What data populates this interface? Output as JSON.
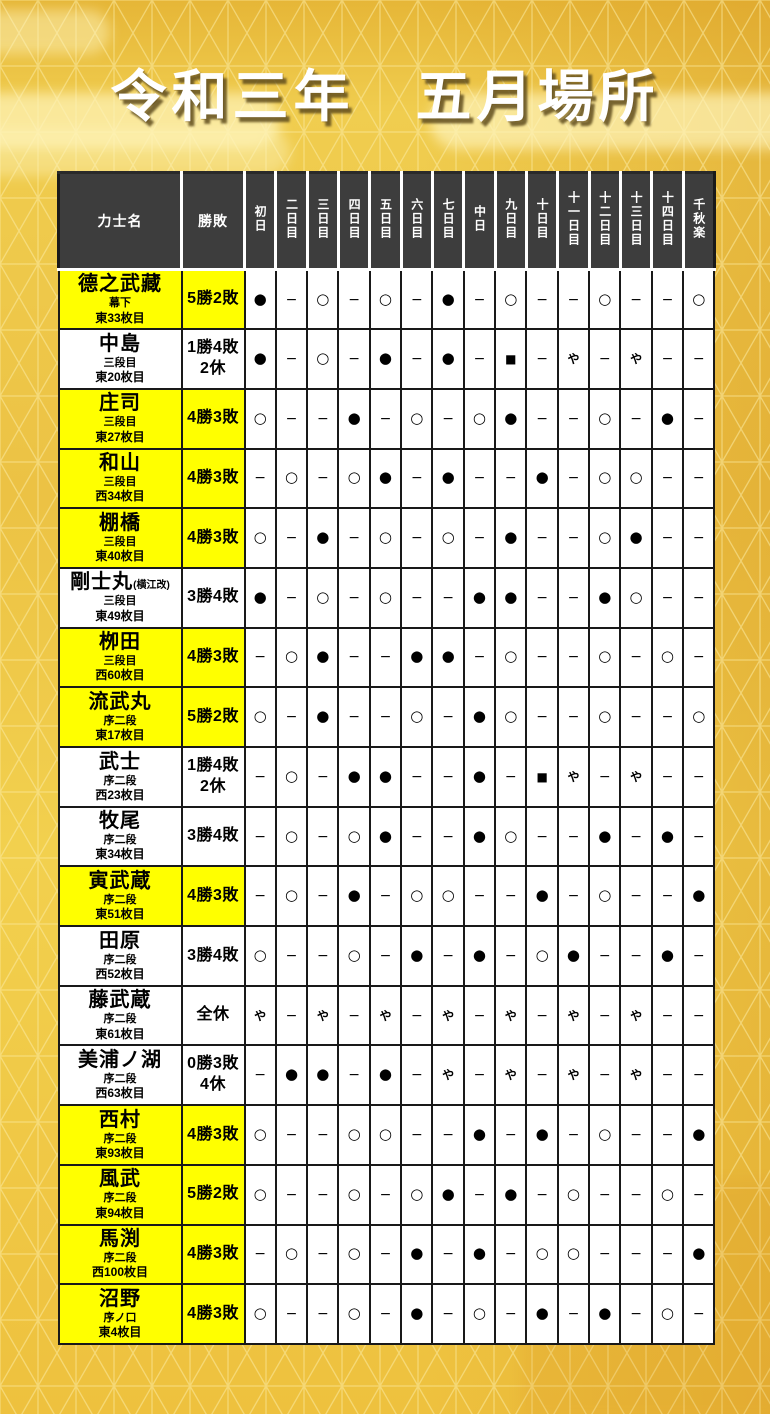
{
  "title": "令和三年　五月場所",
  "colors": {
    "highlight": "#ffff00",
    "header_bg": "#3d3d3d",
    "cell_border": "#191919",
    "background_gold": "#eec13c",
    "title_color": "#ffffff"
  },
  "symbols": {
    "win": "○",
    "loss": "●",
    "no_bout": "−",
    "rest": "や",
    "forfeit": "■"
  },
  "table": {
    "headers": {
      "name": "力士名",
      "record": "勝敗",
      "days": [
        "初日",
        "二日目",
        "三日目",
        "四日目",
        "五日目",
        "六日目",
        "七日目",
        "中日",
        "九日目",
        "十日目",
        "十一日目",
        "十二日目",
        "十三日目",
        "十四日目",
        "千秋楽"
      ]
    },
    "rows": [
      {
        "name": "德之武藏",
        "note": "",
        "rank": "幕下",
        "pos": "東33枚目",
        "record": "5勝2敗",
        "record2": "",
        "highlight": true,
        "results": [
          "●",
          "−",
          "○",
          "−",
          "○",
          "−",
          "●",
          "−",
          "○",
          "−",
          "−",
          "○",
          "−",
          "−",
          "○"
        ]
      },
      {
        "name": "中島",
        "note": "",
        "rank": "三段目",
        "pos": "東20枚目",
        "record": "1勝4敗",
        "record2": "2休",
        "highlight": false,
        "results": [
          "●",
          "−",
          "○",
          "−",
          "●",
          "−",
          "●",
          "−",
          "■",
          "−",
          "や",
          "−",
          "や",
          "−",
          "−"
        ]
      },
      {
        "name": "庄司",
        "note": "",
        "rank": "三段目",
        "pos": "東27枚目",
        "record": "4勝3敗",
        "record2": "",
        "highlight": true,
        "results": [
          "○",
          "−",
          "−",
          "●",
          "−",
          "○",
          "−",
          "○",
          "●",
          "−",
          "−",
          "○",
          "−",
          "●",
          "−"
        ]
      },
      {
        "name": "和山",
        "note": "",
        "rank": "三段目",
        "pos": "西34枚目",
        "record": "4勝3敗",
        "record2": "",
        "highlight": true,
        "results": [
          "−",
          "○",
          "−",
          "○",
          "●",
          "−",
          "●",
          "−",
          "−",
          "●",
          "−",
          "○",
          "○",
          "−",
          "−"
        ]
      },
      {
        "name": "棚橋",
        "note": "",
        "rank": "三段目",
        "pos": "東40枚目",
        "record": "4勝3敗",
        "record2": "",
        "highlight": true,
        "results": [
          "○",
          "−",
          "●",
          "−",
          "○",
          "−",
          "○",
          "−",
          "●",
          "−",
          "−",
          "○",
          "●",
          "−",
          "−"
        ]
      },
      {
        "name": "剛士丸",
        "note": "(横江改)",
        "rank": "三段目",
        "pos": "東49枚目",
        "record": "3勝4敗",
        "record2": "",
        "highlight": false,
        "results": [
          "●",
          "−",
          "○",
          "−",
          "○",
          "−",
          "−",
          "●",
          "●",
          "−",
          "−",
          "●",
          "○",
          "−",
          "−"
        ]
      },
      {
        "name": "栁田",
        "note": "",
        "rank": "三段目",
        "pos": "西60枚目",
        "record": "4勝3敗",
        "record2": "",
        "highlight": true,
        "results": [
          "−",
          "○",
          "●",
          "−",
          "−",
          "●",
          "●",
          "−",
          "○",
          "−",
          "−",
          "○",
          "−",
          "○",
          "−"
        ]
      },
      {
        "name": "流武丸",
        "note": "",
        "rank": "序二段",
        "pos": "東17枚目",
        "record": "5勝2敗",
        "record2": "",
        "highlight": true,
        "results": [
          "○",
          "−",
          "●",
          "−",
          "−",
          "○",
          "−",
          "●",
          "○",
          "−",
          "−",
          "○",
          "−",
          "−",
          "○"
        ]
      },
      {
        "name": "武士",
        "note": "",
        "rank": "序二段",
        "pos": "西23枚目",
        "record": "1勝4敗",
        "record2": "2休",
        "highlight": false,
        "results": [
          "−",
          "○",
          "−",
          "●",
          "●",
          "−",
          "−",
          "●",
          "−",
          "■",
          "や",
          "−",
          "や",
          "−",
          "−"
        ]
      },
      {
        "name": "牧尾",
        "note": "",
        "rank": "序二段",
        "pos": "東34枚目",
        "record": "3勝4敗",
        "record2": "",
        "highlight": false,
        "results": [
          "−",
          "○",
          "−",
          "○",
          "●",
          "−",
          "−",
          "●",
          "○",
          "−",
          "−",
          "●",
          "−",
          "●",
          "−"
        ]
      },
      {
        "name": "寅武蔵",
        "note": "",
        "rank": "序二段",
        "pos": "東51枚目",
        "record": "4勝3敗",
        "record2": "",
        "highlight": true,
        "results": [
          "−",
          "○",
          "−",
          "●",
          "−",
          "○",
          "○",
          "−",
          "−",
          "●",
          "−",
          "○",
          "−",
          "−",
          "●"
        ]
      },
      {
        "name": "田原",
        "note": "",
        "rank": "序二段",
        "pos": "西52枚目",
        "record": "3勝4敗",
        "record2": "",
        "highlight": false,
        "results": [
          "○",
          "−",
          "−",
          "○",
          "−",
          "●",
          "−",
          "●",
          "−",
          "○",
          "●",
          "−",
          "−",
          "●",
          "−"
        ]
      },
      {
        "name": "藤武蔵",
        "note": "",
        "rank": "序二段",
        "pos": "東61枚目",
        "record": "全休",
        "record2": "",
        "highlight": false,
        "results": [
          "や",
          "−",
          "や",
          "−",
          "や",
          "−",
          "や",
          "−",
          "や",
          "−",
          "や",
          "−",
          "や",
          "−",
          "−"
        ]
      },
      {
        "name": "美浦ノ湖",
        "note": "",
        "rank": "序二段",
        "pos": "西63枚目",
        "record": "0勝3敗",
        "record2": "4休",
        "highlight": false,
        "results": [
          "−",
          "●",
          "●",
          "−",
          "●",
          "−",
          "や",
          "−",
          "や",
          "−",
          "や",
          "−",
          "や",
          "−",
          "−"
        ]
      },
      {
        "name": "西村",
        "note": "",
        "rank": "序二段",
        "pos": "東93枚目",
        "record": "4勝3敗",
        "record2": "",
        "highlight": true,
        "results": [
          "○",
          "−",
          "−",
          "○",
          "○",
          "−",
          "−",
          "●",
          "−",
          "●",
          "−",
          "○",
          "−",
          "−",
          "●"
        ]
      },
      {
        "name": "風武",
        "note": "",
        "rank": "序二段",
        "pos": "東94枚目",
        "record": "5勝2敗",
        "record2": "",
        "highlight": true,
        "results": [
          "○",
          "−",
          "−",
          "○",
          "−",
          "○",
          "●",
          "−",
          "●",
          "−",
          "○",
          "−",
          "−",
          "○",
          "−"
        ]
      },
      {
        "name": "馬渕",
        "note": "",
        "rank": "序二段",
        "pos": "西100枚目",
        "record": "4勝3敗",
        "record2": "",
        "highlight": true,
        "results": [
          "−",
          "○",
          "−",
          "○",
          "−",
          "●",
          "−",
          "●",
          "−",
          "○",
          "○",
          "−",
          "−",
          "−",
          "●"
        ]
      },
      {
        "name": "沼野",
        "note": "",
        "rank": "序ノ口",
        "pos": "東4枚目",
        "record": "4勝3敗",
        "record2": "",
        "highlight": true,
        "results": [
          "○",
          "−",
          "−",
          "○",
          "−",
          "●",
          "−",
          "○",
          "−",
          "●",
          "−",
          "●",
          "−",
          "○",
          "−"
        ]
      }
    ]
  }
}
